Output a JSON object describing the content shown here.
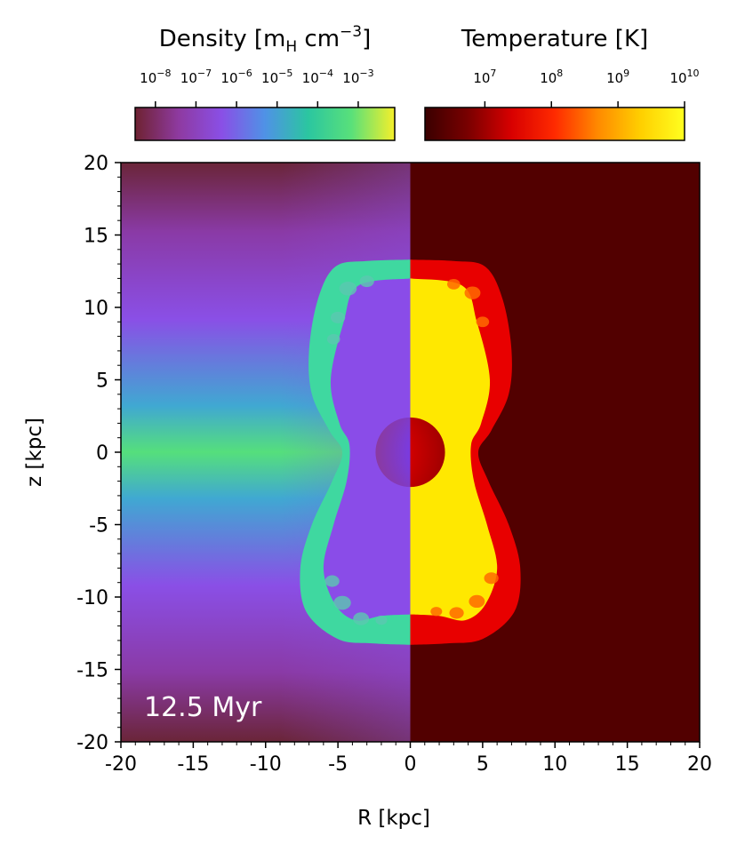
{
  "chart_data": {
    "type": "heatmap",
    "description_of_panels": [
      "density (left half, R<0)",
      "temperature (right half, R>0)"
    ],
    "time_label": "12.5 Myr",
    "xlabel": "R [kpc]",
    "ylabel": "z [kpc]",
    "xlim": [
      -20,
      20
    ],
    "ylim": [
      -20,
      20
    ],
    "x_ticks": [
      -20,
      -15,
      -10,
      -5,
      0,
      5,
      10,
      15,
      20
    ],
    "x_tick_labels": [
      "-20",
      "-15",
      "-10",
      "-5",
      "0",
      "5",
      "10",
      "15",
      "20"
    ],
    "y_ticks": [
      20,
      15,
      10,
      5,
      0,
      -5,
      -10,
      -15,
      -20
    ],
    "y_tick_labels": [
      "20",
      "15",
      "10",
      "5",
      "0",
      "-5",
      "-10",
      "-15",
      "-20"
    ],
    "density_colorbar": {
      "title": "Density [m_H cm^-3]",
      "title_parts": {
        "name": "Density ",
        "m": "m",
        "H": "H",
        "cm": " cm",
        "exp": "−3"
      },
      "scale": "log",
      "range": [
        -8.5,
        -2.1
      ],
      "colormap": "rainbow4",
      "stops": [
        "#6e2231",
        "#8e3aa0",
        "#8a4fe6",
        "#4f92e6",
        "#2bc6a0",
        "#59e07a",
        "#f5ef2a"
      ],
      "ticks": [
        -8,
        -7,
        -6,
        -5,
        -4,
        -3
      ],
      "tick_labels": [
        {
          "base": "10",
          "exp": "−8"
        },
        {
          "base": "10",
          "exp": "−7"
        },
        {
          "base": "10",
          "exp": "−6"
        },
        {
          "base": "10",
          "exp": "−5"
        },
        {
          "base": "10",
          "exp": "−4"
        },
        {
          "base": "10",
          "exp": "−3"
        }
      ]
    },
    "temperature_colorbar": {
      "title": "Temperature [K]",
      "scale": "log",
      "range": [
        6.1,
        10
      ],
      "colormap": "hot",
      "stops": [
        "#3a0000",
        "#7a0000",
        "#d80000",
        "#ff2a00",
        "#ff8a00",
        "#ffd000",
        "#ffff20"
      ],
      "ticks": [
        7,
        8,
        9,
        10
      ],
      "tick_labels": [
        {
          "base": "10",
          "exp": "7"
        },
        {
          "base": "10",
          "exp": "8"
        },
        {
          "base": "10",
          "exp": "9"
        },
        {
          "base": "10",
          "exp": "10"
        }
      ]
    },
    "bubble_outline_kpc": {
      "outer": [
        [
          0,
          13.3
        ],
        [
          3,
          13.2
        ],
        [
          5.2,
          12.8
        ],
        [
          6.4,
          10.5
        ],
        [
          7,
          7
        ],
        [
          6.8,
          4
        ],
        [
          5.6,
          1.5
        ],
        [
          4.7,
          0
        ],
        [
          5.4,
          -2
        ],
        [
          6.8,
          -5
        ],
        [
          7.6,
          -8
        ],
        [
          7.2,
          -11
        ],
        [
          5,
          -12.9
        ],
        [
          2.5,
          -13.2
        ],
        [
          0,
          -13.3
        ]
      ],
      "inner": [
        [
          0,
          12
        ],
        [
          3.6,
          11.5
        ],
        [
          4.6,
          9
        ],
        [
          5.5,
          5
        ],
        [
          4.9,
          2
        ],
        [
          4.2,
          0.5
        ],
        [
          4.4,
          -2
        ],
        [
          5.3,
          -5
        ],
        [
          6,
          -8
        ],
        [
          5.2,
          -10.5
        ],
        [
          3.8,
          -11.6
        ],
        [
          2,
          -11.3
        ],
        [
          0,
          -11.2
        ]
      ],
      "core_radius": 2.4
    },
    "colors": {
      "background_temperature": "#520000",
      "density_background_center": "#55df7c",
      "density_background_edge": "#6a2538",
      "density_bubble_interior": "#8a4ce8",
      "density_shell": "#3fd8a0",
      "temperature_shell": "#e80000",
      "temperature_interior": "#ffe800",
      "core_density": "#7a3be0",
      "core_temperature": "#c80000"
    }
  }
}
